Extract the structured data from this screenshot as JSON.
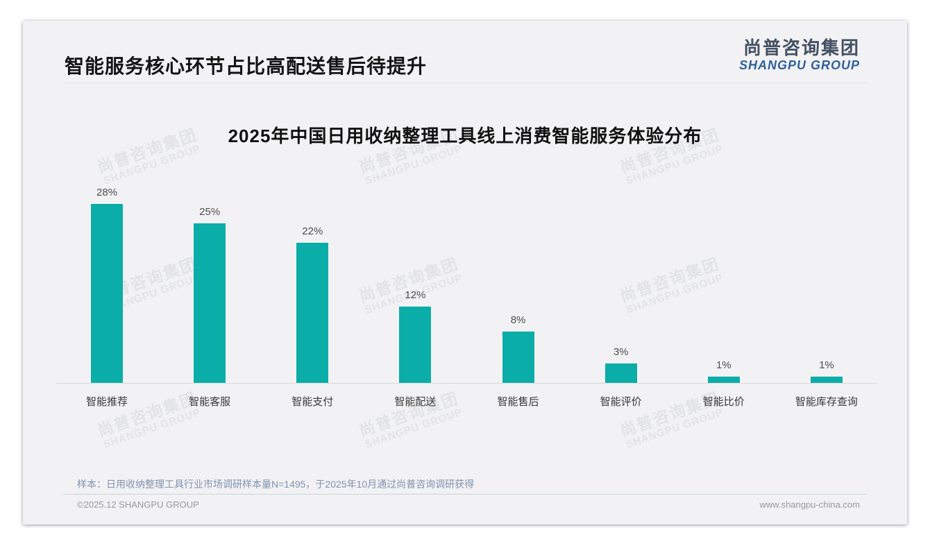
{
  "header": {
    "title": "智能服务核心环节占比高配送售后待提升",
    "logo_cn": "尚普咨询集团",
    "logo_en": "SHANGPU GROUP"
  },
  "watermark": {
    "cn": "尚普咨询集团",
    "en": "SHANGPU GROUP"
  },
  "chart_data": {
    "type": "bar",
    "title": "2025年中国日用收纳整理工具线上消费智能服务体验分布",
    "categories": [
      "智能推荐",
      "智能客服",
      "智能支付",
      "智能配送",
      "智能售后",
      "智能评价",
      "智能比价",
      "智能库存查询"
    ],
    "values": [
      28,
      25,
      22,
      12,
      8,
      3,
      1,
      1
    ],
    "value_labels": [
      "28%",
      "25%",
      "22%",
      "12%",
      "8%",
      "3%",
      "1%",
      "1%"
    ],
    "unit": "%",
    "xlabel": "",
    "ylabel": "",
    "ylim": [
      0,
      30
    ],
    "grid": false,
    "legend": false,
    "bar_color": "#0bada8"
  },
  "footer": {
    "sample_note": "样本：日用收纳整理工具行业市场调研样本量N=1495，于2025年10月通过尚普咨询调研获得",
    "copyright": "©2025.12 SHANGPU GROUP",
    "website": "www.shangpu-china.com"
  },
  "colors": {
    "bar": "#0bada8",
    "card_background": "#f2f2f4",
    "logo_blue": "#2f609a",
    "note_blue_gray": "#8093ad",
    "axis_line": "#d8d8d8"
  }
}
